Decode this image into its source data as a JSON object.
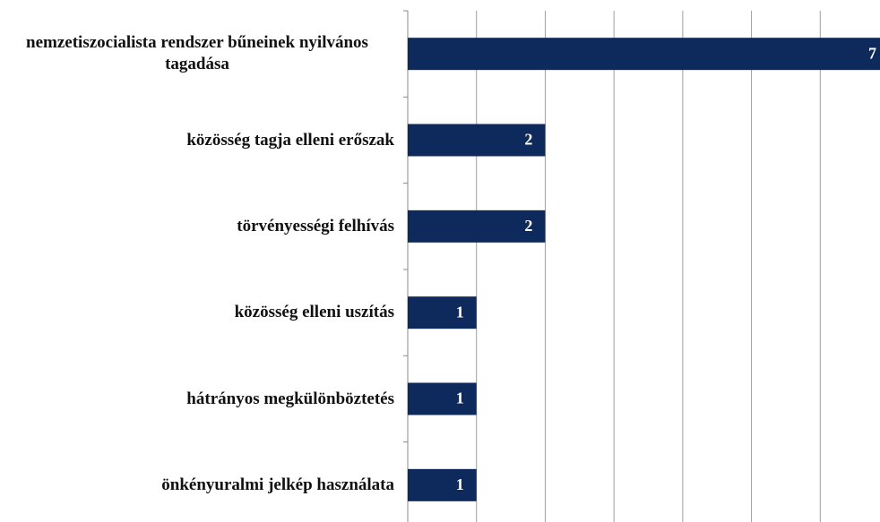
{
  "chart_data": {
    "type": "bar",
    "orientation": "horizontal",
    "categories": [
      "nemzetiszocialista rendszer bűneinek nyilvános tagadása",
      "közösség tagja elleni erőszak",
      "törvényességi felhívás",
      "közösség elleni uszítás",
      "hátrányos megkülönböztetés",
      "önkényuralmi jelkép használata"
    ],
    "values": [
      7,
      2,
      2,
      1,
      1,
      1
    ],
    "color": "#0e2a5c",
    "xlim": [
      0,
      7
    ],
    "xticks": [
      0,
      1,
      2,
      3,
      4,
      5,
      6,
      7
    ],
    "grid": true
  }
}
